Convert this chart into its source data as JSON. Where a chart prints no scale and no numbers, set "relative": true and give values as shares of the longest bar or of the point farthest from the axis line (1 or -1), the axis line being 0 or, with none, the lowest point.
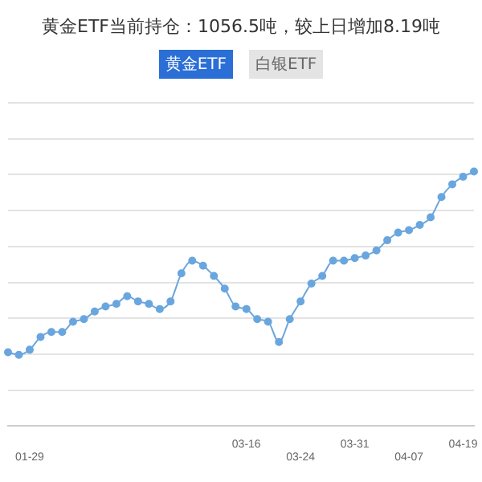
{
  "chart_data": {
    "type": "line",
    "title": "黄金ETF当前持仓：1056.5吨，较上日增加8.19吨",
    "annotations": [
      "黄金ETF",
      "白银ETF"
    ],
    "relative": true,
    "grid": "y",
    "marker": "circle",
    "color": "#6aa6de",
    "categories": [
      null,
      null,
      "01-29",
      null,
      null,
      null,
      null,
      null,
      null,
      null,
      null,
      null,
      null,
      null,
      null,
      null,
      null,
      null,
      null,
      null,
      null,
      null,
      "03-16",
      null,
      null,
      null,
      null,
      "03-24",
      null,
      null,
      null,
      null,
      "03-31",
      null,
      null,
      null,
      null,
      "04-07",
      null,
      null,
      null,
      null,
      "04-19",
      null
    ],
    "values": [
      0.29,
      0.28,
      0.3,
      0.35,
      0.37,
      0.37,
      0.41,
      0.42,
      0.45,
      0.47,
      0.48,
      0.51,
      0.49,
      0.48,
      0.46,
      0.49,
      0.6,
      0.65,
      0.63,
      0.59,
      0.54,
      0.47,
      0.46,
      0.42,
      0.41,
      0.33,
      0.42,
      0.49,
      0.56,
      0.59,
      0.65,
      0.65,
      0.66,
      0.67,
      0.69,
      0.73,
      0.76,
      0.77,
      0.79,
      0.82,
      0.9,
      0.95,
      0.98,
      1
    ]
  }
}
